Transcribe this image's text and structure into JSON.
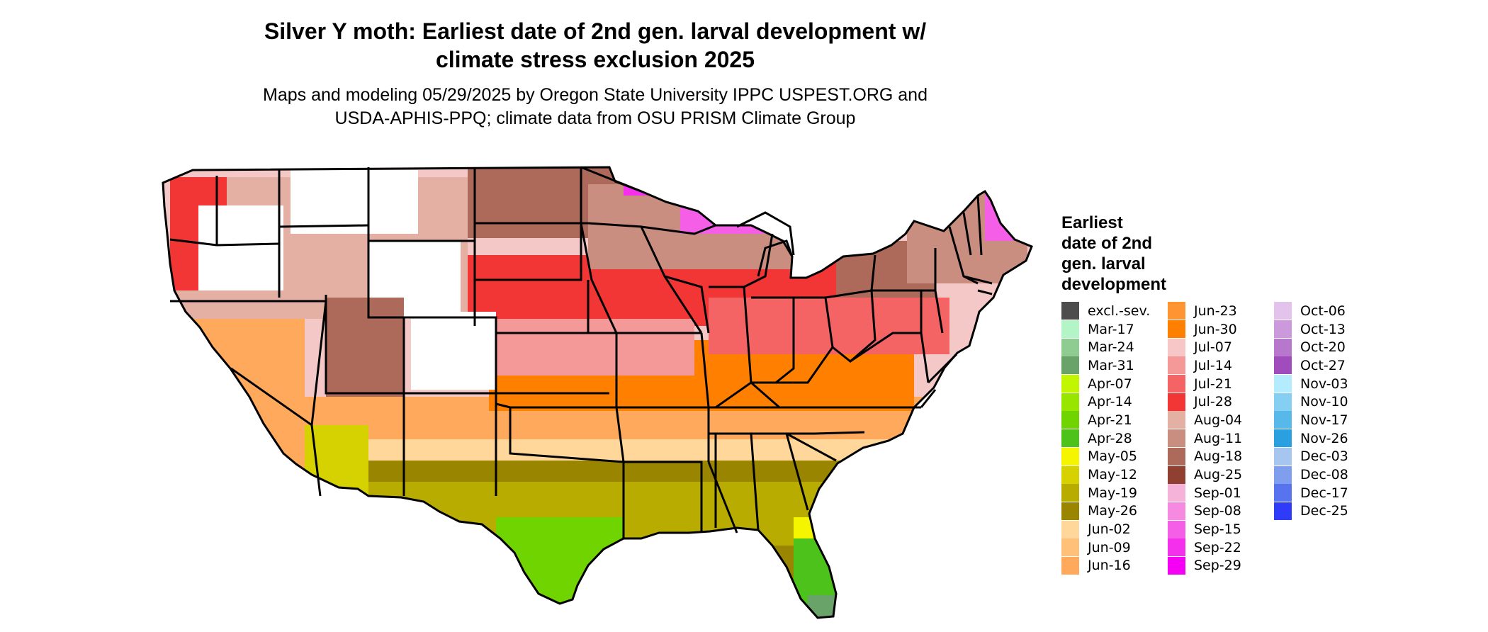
{
  "title_line1": "Silver Y moth: Earliest date of 2nd gen. larval development w/",
  "title_line2": "climate stress exclusion 2025",
  "subtitle_line1": "Maps and modeling 05/29/2025 by Oregon State University IPPC USPEST.ORG and",
  "subtitle_line2": "USDA-APHIS-PPQ; climate data from OSU PRISM Climate Group",
  "legend": {
    "title": "Earliest\ndate of 2nd\ngen. larval\ndevelopment",
    "columns": [
      [
        {
          "label": "excl.-sev.",
          "color": "#4d4d4d"
        },
        {
          "label": "Mar-17",
          "color": "#b3f5c6"
        },
        {
          "label": "Mar-24",
          "color": "#8fcc92"
        },
        {
          "label": "Mar-31",
          "color": "#6aa36a"
        },
        {
          "label": "Apr-07",
          "color": "#c2f500"
        },
        {
          "label": "Apr-14",
          "color": "#98e600"
        },
        {
          "label": "Apr-21",
          "color": "#6fd400"
        },
        {
          "label": "Apr-28",
          "color": "#4dc21a"
        },
        {
          "label": "May-05",
          "color": "#f5f500"
        },
        {
          "label": "May-12",
          "color": "#d6d100"
        },
        {
          "label": "May-19",
          "color": "#b8ac00"
        },
        {
          "label": "May-26",
          "color": "#9a8500"
        },
        {
          "label": "Jun-02",
          "color": "#ffd79a"
        },
        {
          "label": "Jun-09",
          "color": "#ffc07a"
        },
        {
          "label": "Jun-16",
          "color": "#ffa95c"
        }
      ],
      [
        {
          "label": "Jun-23",
          "color": "#ff9433"
        },
        {
          "label": "Jun-30",
          "color": "#ff8000"
        },
        {
          "label": "Jul-07",
          "color": "#f7c6c6"
        },
        {
          "label": "Jul-14",
          "color": "#f59898"
        },
        {
          "label": "Jul-21",
          "color": "#f56464"
        },
        {
          "label": "Jul-28",
          "color": "#f23535"
        },
        {
          "label": "Aug-04",
          "color": "#e3b0a3"
        },
        {
          "label": "Aug-11",
          "color": "#c98e80"
        },
        {
          "label": "Aug-18",
          "color": "#ad6a5a"
        },
        {
          "label": "Aug-25",
          "color": "#8f4030"
        },
        {
          "label": "Sep-01",
          "color": "#f5b3d9"
        },
        {
          "label": "Sep-08",
          "color": "#f58ae0"
        },
        {
          "label": "Sep-15",
          "color": "#f55ee6"
        },
        {
          "label": "Sep-22",
          "color": "#f530ec"
        },
        {
          "label": "Sep-29",
          "color": "#f500f5"
        }
      ],
      [
        {
          "label": "Oct-06",
          "color": "#e3c2ec"
        },
        {
          "label": "Oct-13",
          "color": "#cc99dc"
        },
        {
          "label": "Oct-20",
          "color": "#b777cc"
        },
        {
          "label": "Oct-27",
          "color": "#a04cbd"
        },
        {
          "label": "Nov-03",
          "color": "#b3ecfc"
        },
        {
          "label": "Nov-10",
          "color": "#85d0f2"
        },
        {
          "label": "Nov-17",
          "color": "#57b8ea"
        },
        {
          "label": "Nov-26",
          "color": "#2aa0e0"
        },
        {
          "label": "Dec-03",
          "color": "#a6c6ef"
        },
        {
          "label": "Dec-08",
          "color": "#7f9fee"
        },
        {
          "label": "Dec-17",
          "color": "#5774ee"
        },
        {
          "label": "Dec-25",
          "color": "#2e3cfa"
        }
      ]
    ]
  }
}
